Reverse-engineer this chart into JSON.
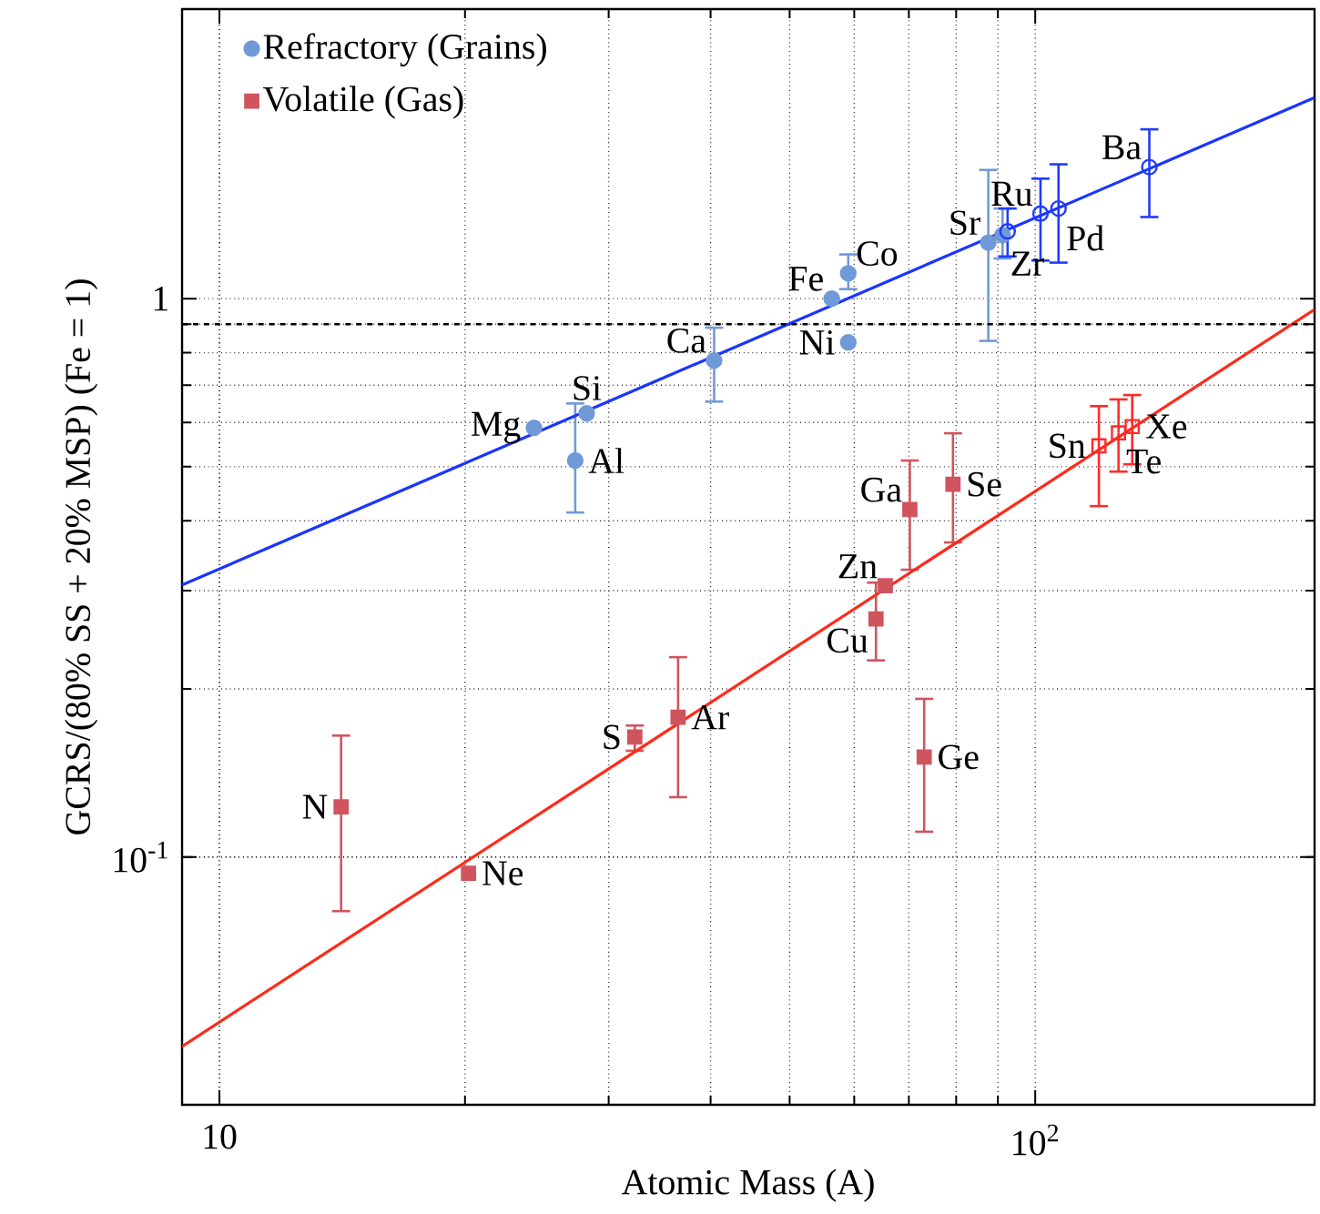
{
  "chart_data": {
    "type": "scatter",
    "xlabel": "Atomic Mass (A)",
    "ylabel": "GCRS/(80% SS + 20% MSP) (Fe = 1)",
    "log": "xy",
    "grid": true,
    "legend": "top left",
    "xlim": [
      9,
      220
    ],
    "ylim": [
      0.036,
      3.3
    ],
    "xticks": [
      10,
      {
        "value": 100,
        "label": "10$^{2}$"
      }
    ],
    "yticks": [
      {
        "value": 0.1,
        "label": "10$^{-1}$"
      },
      1
    ],
    "series": [
      {
        "name": "Refractory (Grains)",
        "type": "scatter",
        "marker": "circle",
        "color": "#7099d8",
        "x": [
          24.3,
          27.3,
          28.2,
          40.4,
          56.3,
          59.0,
          59.0,
          87.6,
          91.2
        ],
        "values": [
          0.587,
          0.513,
          0.623,
          0.775,
          1.0,
          0.835,
          1.11,
          1.26,
          1.3
        ],
        "errors": [
          null,
          [
            0.414,
            0.649
          ],
          null,
          [
            0.654,
            0.887
          ],
          null,
          null,
          [
            1.04,
            1.2
          ],
          [
            0.84,
            1.7
          ],
          [
            1.18,
            1.45
          ]
        ]
      },
      {
        "name": "Volatile (Gas)",
        "type": "scatter",
        "marker": "square",
        "color": "#d0545e",
        "x": [
          14.1,
          20.2,
          32.3,
          36.5,
          63.8,
          65.5,
          70.2,
          73.1,
          79.3
        ],
        "values": [
          0.123,
          0.0935,
          0.164,
          0.178,
          0.267,
          0.306,
          0.419,
          0.151,
          0.465
        ],
        "errors": [
          [
            0.08,
            0.165
          ],
          null,
          [
            0.155,
            0.172
          ],
          [
            0.128,
            0.228
          ],
          [
            0.225,
            0.31
          ],
          null,
          [
            0.327,
            0.513
          ],
          [
            0.111,
            0.192
          ],
          [
            0.366,
            0.574
          ]
        ]
      },
      {
        "type": "scatter",
        "marker": "circle",
        "color": "#1f3bff",
        "x": [
          92.5,
          101.5,
          106.8,
          138
        ],
        "values": [
          1.32,
          1.42,
          1.45,
          1.72
        ],
        "errors": [
          [
            1.19,
            1.45
          ],
          [
            1.17,
            1.64
          ],
          [
            1.16,
            1.74
          ],
          [
            1.4,
            2.01
          ]
        ]
      },
      {
        "type": "scatter",
        "marker": "square",
        "color": "#ff2a2a",
        "x": [
          119.7,
          126.5,
          131.5
        ],
        "values": [
          0.545,
          0.575,
          0.59
        ],
        "errors": [
          [
            0.425,
            0.642
          ],
          [
            0.49,
            0.66
          ],
          [
            0.505,
            0.672
          ]
        ]
      },
      {
        "type": "line",
        "marker": "none",
        "color": "#1a35ff",
        "x": [
          9,
          220
        ],
        "values": [
          0.307,
          2.29
        ]
      },
      {
        "type": "line",
        "marker": "none",
        "color": "#ff2a1a",
        "x": [
          9,
          220
        ],
        "values": [
          0.0458,
          0.956
        ]
      },
      {
        "type": "line",
        "marker": "none",
        "line_style": "dashed",
        "color": "#000000",
        "x": [
          9,
          220
        ],
        "values": [
          0.9,
          0.9
        ]
      }
    ],
    "annotations": [
      {
        "text": "Mg",
        "x": 24.3,
        "y": 0.587
      },
      {
        "text": "Al",
        "x": 27.3,
        "y": 0.513
      },
      {
        "text": "Si",
        "x": 28.2,
        "y": 0.623
      },
      {
        "text": "Ca",
        "x": 40.4,
        "y": 0.775
      },
      {
        "text": "Fe",
        "x": 56.3,
        "y": 1.0
      },
      {
        "text": "Ni",
        "x": 59.0,
        "y": 0.835
      },
      {
        "text": "Co",
        "x": 59.0,
        "y": 1.11
      },
      {
        "text": "Sr",
        "x": 87.6,
        "y": 1.26
      },
      {
        "text": "Zr",
        "x": 91.2,
        "y": 1.3
      },
      {
        "text": "Ru",
        "x": 101.5,
        "y": 1.42
      },
      {
        "text": "Pd",
        "x": 106.8,
        "y": 1.45
      },
      {
        "text": "Ba",
        "x": 138,
        "y": 1.72
      },
      {
        "text": "N",
        "x": 14.1,
        "y": 0.123
      },
      {
        "text": "Ne",
        "x": 20.2,
        "y": 0.0935
      },
      {
        "text": "S",
        "x": 32.3,
        "y": 0.164
      },
      {
        "text": "Ar",
        "x": 36.5,
        "y": 0.178
      },
      {
        "text": "Cu",
        "x": 63.8,
        "y": 0.267
      },
      {
        "text": "Zn",
        "x": 65.5,
        "y": 0.306
      },
      {
        "text": "Ga",
        "x": 70.2,
        "y": 0.419
      },
      {
        "text": "Ge",
        "x": 73.1,
        "y": 0.151
      },
      {
        "text": "Se",
        "x": 79.3,
        "y": 0.465
      },
      {
        "text": "Sn",
        "x": 119.7,
        "y": 0.545
      },
      {
        "text": "Te",
        "x": 126.5,
        "y": 0.575
      },
      {
        "text": "Xe",
        "x": 131.5,
        "y": 0.59
      }
    ]
  }
}
